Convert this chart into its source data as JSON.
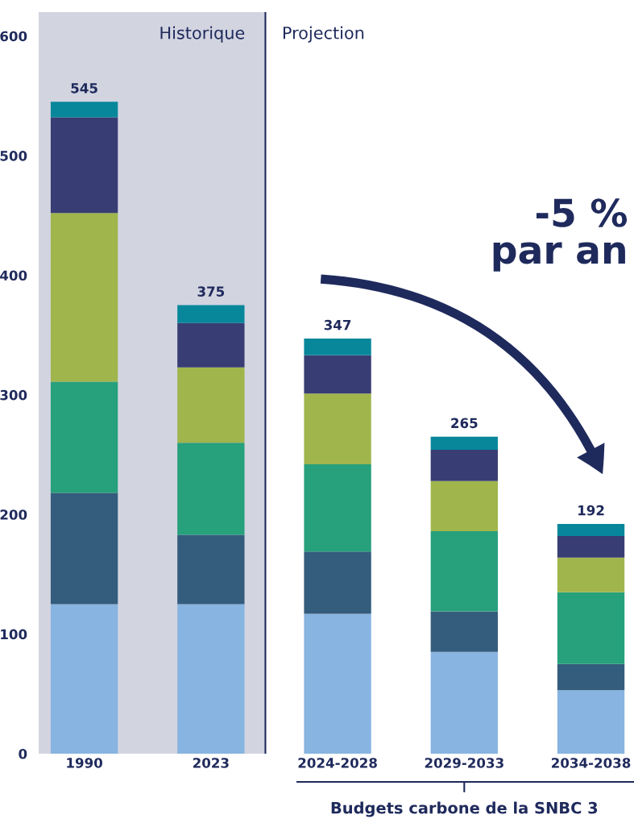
{
  "chart_data": {
    "type": "bar",
    "stacked": true,
    "categories": [
      "1990",
      "2023",
      "2024-2028",
      "2029-2033",
      "2034-2038"
    ],
    "series": [
      {
        "color": "#87b4e0",
        "values": [
          125,
          125,
          117,
          85,
          53
        ]
      },
      {
        "color": "#345c7c",
        "values": [
          93,
          58,
          52,
          34,
          22
        ]
      },
      {
        "color": "#27a07c",
        "values": [
          93,
          77,
          73,
          67,
          60
        ]
      },
      {
        "color": "#a0b54c",
        "values": [
          141,
          63,
          59,
          42,
          29
        ]
      },
      {
        "color": "#383d73",
        "values": [
          80,
          37,
          32,
          26,
          18
        ]
      },
      {
        "color": "#08879b",
        "values": [
          13,
          15,
          14,
          11,
          10
        ]
      }
    ],
    "totals": [
      "545",
      "375",
      "347",
      "265",
      "192"
    ],
    "ylim": [
      0,
      620
    ],
    "yticks": [
      0,
      100,
      200,
      300,
      400,
      500,
      600
    ],
    "grid": false,
    "legend": false,
    "bands": [
      {
        "axis": "x",
        "from": "1990",
        "to": "2023",
        "label": "Historique",
        "color": "#d2d4e0"
      }
    ],
    "ref_lines": [
      {
        "axis": "x",
        "value": "2023",
        "label": "Projection",
        "color": "#1f2a5c"
      }
    ],
    "annotations": [
      "-5 %\npar an",
      "Budgets carbone de la SNBC 3"
    ]
  }
}
